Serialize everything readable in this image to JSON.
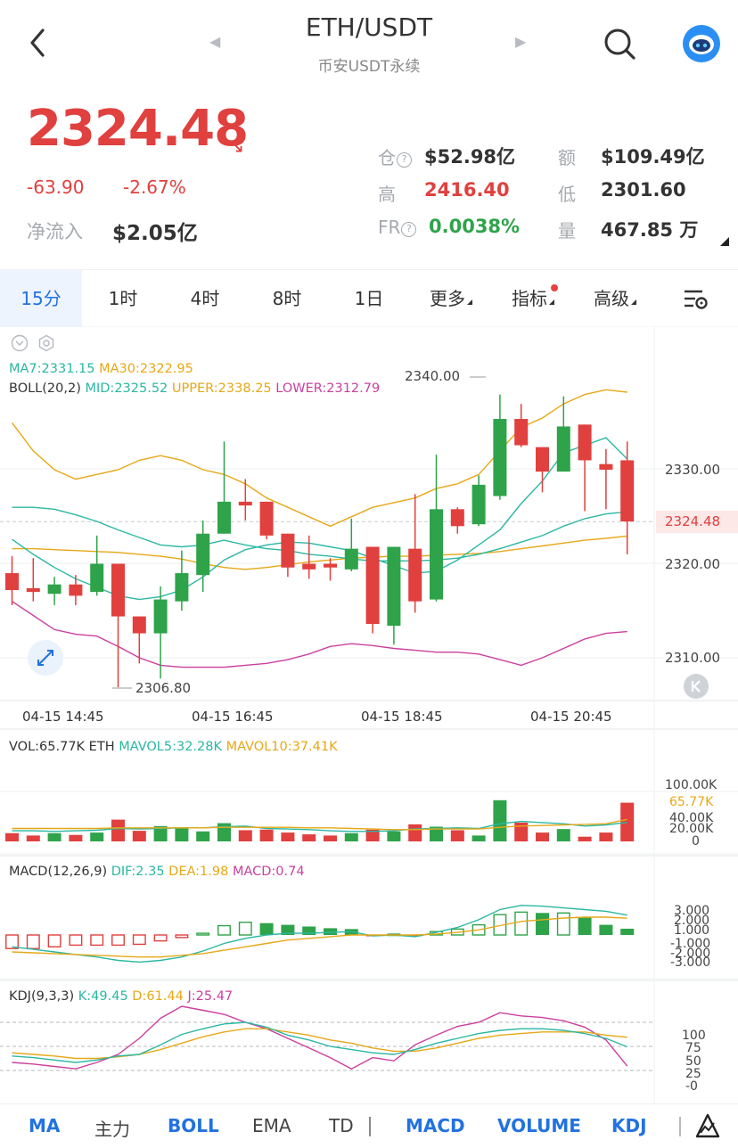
{
  "header": {
    "pair": "ETH/USDT",
    "subtitle": "币安USDT永续"
  },
  "price": {
    "last": "2324.48",
    "change": "-63.90",
    "change_pct": "-2.67%",
    "netflow_label": "净流入",
    "netflow_value": "$2.05亿"
  },
  "stats": {
    "oi_label": "仓",
    "oi_value": "$52.98亿",
    "turnover_label": "额",
    "turnover_value": "$109.49亿",
    "high_label": "高",
    "high_value": "2416.40",
    "low_label": "低",
    "low_value": "2301.60",
    "fr_label": "FR",
    "fr_value": "0.0038%",
    "vol_label": "量",
    "vol_value": "467.85 万"
  },
  "tabs": [
    "15分",
    "1时",
    "4时",
    "8时",
    "1日",
    "更多",
    "指标",
    "高级"
  ],
  "main_chart": {
    "ma_line": {
      "ma7": "MA7:2331.15",
      "ma30": "MA30:2322.95"
    },
    "boll_line": {
      "title": "BOLL(20,2)",
      "mid": "MID:2325.52",
      "upper": "UPPER:2338.25",
      "lower": "LOWER:2312.79"
    },
    "y_ticks": [
      "2330.00",
      "2320.00",
      "2310.00"
    ],
    "current_price_tag": "2324.48",
    "max_label": "2340.00",
    "min_label": "2306.80",
    "time_labels": [
      "04-15 14:45",
      "04-15 16:45",
      "04-15 18:45",
      "04-15 20:45"
    ]
  },
  "volume_panel": {
    "vol": "VOL:65.77K ETH",
    "mavol5": "MAVOL5:32.28K",
    "mavol10": "MAVOL10:37.41K",
    "ticks": [
      "100.00K",
      "65.77K",
      "40.00K",
      "20.00K",
      "0"
    ]
  },
  "macd_panel": {
    "title": "MACD(12,26,9)",
    "dif": "DIF:2.35",
    "dea": "DEA:1.98",
    "macd": "MACD:0.74",
    "ticks": [
      "3.000",
      "2.000",
      "1.000",
      "-1.000",
      "-2.000",
      "-3.000"
    ]
  },
  "kdj_panel": {
    "title": "KDJ(9,3,3)",
    "k": "K:49.45",
    "d": "D:61.44",
    "j": "J:25.47",
    "ticks": [
      "100",
      "75",
      "50",
      "25",
      "-0"
    ]
  },
  "bottom_bar": [
    "MA",
    "主力",
    "BOLL",
    "EMA",
    "TD",
    "MACD",
    "VOLUME",
    "KDJ"
  ],
  "colors": {
    "up": "#2fa34a",
    "down": "#e0403e",
    "accent": "#2272e0",
    "ma7": "#2bb7a2",
    "ma30": "#e6a817",
    "lower": "#cc3f9e"
  },
  "chart_data": {
    "type": "candlestick",
    "interval": "15分",
    "candles": [
      {
        "o": 2319.0,
        "c": 2317.2,
        "h": 2320.8,
        "l": 2315.6
      },
      {
        "o": 2317.4,
        "c": 2317.0,
        "h": 2320.6,
        "l": 2316.0
      },
      {
        "o": 2316.8,
        "c": 2317.8,
        "h": 2318.6,
        "l": 2315.6
      },
      {
        "o": 2317.8,
        "c": 2316.6,
        "h": 2318.8,
        "l": 2315.6
      },
      {
        "o": 2317.0,
        "c": 2320.0,
        "h": 2323.0,
        "l": 2316.6
      },
      {
        "o": 2320.0,
        "c": 2314.4,
        "h": 2320.0,
        "l": 2306.8
      },
      {
        "o": 2314.4,
        "c": 2312.6,
        "h": 2314.4,
        "l": 2309.4
      },
      {
        "o": 2312.6,
        "c": 2316.2,
        "h": 2317.6,
        "l": 2307.8
      },
      {
        "o": 2316.0,
        "c": 2319.0,
        "h": 2321.4,
        "l": 2315.0
      },
      {
        "o": 2318.8,
        "c": 2323.2,
        "h": 2324.6,
        "l": 2317.0
      },
      {
        "o": 2323.2,
        "c": 2326.6,
        "h": 2333.0,
        "l": 2323.2
      },
      {
        "o": 2326.6,
        "c": 2326.2,
        "h": 2329.0,
        "l": 2324.6
      },
      {
        "o": 2326.6,
        "c": 2323.0,
        "h": 2326.6,
        "l": 2322.6
      },
      {
        "o": 2323.2,
        "c": 2319.6,
        "h": 2323.2,
        "l": 2318.6
      },
      {
        "o": 2320.0,
        "c": 2319.4,
        "h": 2323.0,
        "l": 2318.4
      },
      {
        "o": 2320.0,
        "c": 2319.6,
        "h": 2320.6,
        "l": 2318.2
      },
      {
        "o": 2319.4,
        "c": 2321.6,
        "h": 2324.8,
        "l": 2319.2
      },
      {
        "o": 2321.8,
        "c": 2313.6,
        "h": 2321.8,
        "l": 2312.6
      },
      {
        "o": 2313.4,
        "c": 2321.8,
        "h": 2321.8,
        "l": 2311.4
      },
      {
        "o": 2321.6,
        "c": 2316.0,
        "h": 2327.4,
        "l": 2314.8
      },
      {
        "o": 2316.2,
        "c": 2325.8,
        "h": 2331.6,
        "l": 2316.0
      },
      {
        "o": 2325.8,
        "c": 2324.0,
        "h": 2326.0,
        "l": 2323.2
      },
      {
        "o": 2324.2,
        "c": 2328.4,
        "h": 2329.4,
        "l": 2324.0
      },
      {
        "o": 2327.2,
        "c": 2335.4,
        "h": 2338.0,
        "l": 2326.8
      },
      {
        "o": 2335.4,
        "c": 2332.6,
        "h": 2337.0,
        "l": 2332.4
      },
      {
        "o": 2332.4,
        "c": 2329.8,
        "h": 2332.4,
        "l": 2327.6
      },
      {
        "o": 2329.8,
        "c": 2334.6,
        "h": 2337.8,
        "l": 2329.8
      },
      {
        "o": 2334.8,
        "c": 2331.0,
        "h": 2334.8,
        "l": 2325.6
      },
      {
        "o": 2330.6,
        "c": 2330.0,
        "h": 2332.2,
        "l": 2325.8
      },
      {
        "o": 2331.0,
        "c": 2324.5,
        "h": 2333.0,
        "l": 2321.0
      }
    ],
    "boll_upper": [
      2335,
      2332,
      2330,
      2329,
      2329.5,
      2330,
      2331,
      2331.5,
      2331,
      2330,
      2329.5,
      2328.5,
      2327,
      2326,
      2325,
      2324,
      2325,
      2326,
      2326.5,
      2327,
      2328,
      2328.5,
      2329.5,
      2332,
      2334.5,
      2335.5,
      2337,
      2338,
      2338.5,
      2338.25
    ],
    "boll_mid": [
      2326,
      2326,
      2325.8,
      2325.2,
      2324.5,
      2323.6,
      2322.8,
      2322,
      2321.8,
      2322,
      2322.5,
      2322,
      2321.6,
      2321.4,
      2321,
      2320.8,
      2320.5,
      2320.3,
      2320.3,
      2320.3,
      2320.4,
      2320.6,
      2321.0,
      2321.6,
      2322.3,
      2323.0,
      2324.0,
      2324.8,
      2325.3,
      2325.52
    ],
    "boll_lower": [
      2316,
      2314.5,
      2313,
      2312.5,
      2312.3,
      2311.2,
      2310,
      2309.2,
      2309,
      2309,
      2309,
      2309.2,
      2309.4,
      2309.8,
      2310.4,
      2311.2,
      2311.5,
      2311.3,
      2311,
      2310.8,
      2310.6,
      2310.6,
      2310.4,
      2309.8,
      2309.2,
      2310,
      2311,
      2312,
      2312.6,
      2312.79
    ],
    "ma7": [
      2322.6,
      2321,
      2319.6,
      2318.4,
      2317.5,
      2316.6,
      2316.2,
      2316.5,
      2317.2,
      2318.6,
      2320.4,
      2321.5,
      2322,
      2322.3,
      2322.2,
      2321.8,
      2321.4,
      2320.6,
      2319.8,
      2319.0,
      2319.2,
      2320.4,
      2322.0,
      2323.6,
      2326.4,
      2328.8,
      2331.8,
      2332.6,
      2333.4,
      2331.15
    ],
    "ma30": [
      2321.6,
      2321.6,
      2321.5,
      2321.4,
      2321.3,
      2321.2,
      2321.0,
      2320.8,
      2320.5,
      2320.0,
      2319.6,
      2319.4,
      2319.6,
      2319.9,
      2320.2,
      2320.4,
      2320.6,
      2320.7,
      2320.8,
      2320.8,
      2320.9,
      2321.0,
      2321.1,
      2321.3,
      2321.6,
      2321.9,
      2322.2,
      2322.5,
      2322.7,
      2322.95
    ],
    "volume_k": [
      14,
      10,
      14,
      11,
      15,
      37,
      18,
      26,
      23,
      17,
      31,
      19,
      20,
      15,
      12,
      10,
      14,
      20,
      17,
      29,
      25,
      19,
      10,
      70,
      32,
      15,
      21,
      8,
      15,
      65.77
    ],
    "mavol5_k": [
      18,
      18,
      17,
      18,
      19,
      22,
      21,
      22,
      23,
      23,
      25,
      26,
      22,
      21,
      20,
      18,
      17,
      17,
      18,
      21,
      22,
      23,
      22,
      30,
      34,
      32,
      30,
      26,
      28,
      32.28
    ],
    "mavol10_k": [
      22,
      22,
      22,
      22,
      22,
      23,
      23,
      23,
      23,
      23,
      24,
      24,
      24,
      24,
      23,
      23,
      22,
      21,
      20,
      20,
      21,
      21,
      21,
      24,
      26,
      27,
      28,
      29,
      30,
      37.41
    ],
    "macd_hist": [
      -1.6,
      -1.6,
      -1.4,
      -1.2,
      -1.2,
      -1.2,
      -1.1,
      -0.7,
      -0.3,
      0.2,
      1.1,
      1.5,
      1.4,
      1.2,
      1.0,
      0.8,
      0.7,
      -0.1,
      0.1,
      -0.1,
      0.4,
      0.7,
      1.2,
      2.4,
      2.7,
      2.6,
      2.6,
      2.1,
      1.2,
      0.74
    ],
    "macd_dif": [
      -1.4,
      -1.7,
      -2.0,
      -2.3,
      -2.6,
      -3.0,
      -3.2,
      -3.0,
      -2.6,
      -1.9,
      -1.0,
      -0.4,
      0.0,
      0.2,
      0.2,
      0.3,
      0.4,
      -0.1,
      0.0,
      -0.2,
      0.3,
      0.9,
      1.8,
      3.0,
      3.5,
      3.4,
      3.2,
      3.0,
      2.8,
      2.35
    ],
    "macd_dea": [
      -2.0,
      -2.1,
      -2.2,
      -2.3,
      -2.4,
      -2.5,
      -2.6,
      -2.6,
      -2.4,
      -2.2,
      -1.8,
      -1.4,
      -1.0,
      -0.6,
      -0.4,
      -0.2,
      0.0,
      0.0,
      0.0,
      0.0,
      0.1,
      0.3,
      0.6,
      1.1,
      1.6,
      1.8,
      2.0,
      2.1,
      2.1,
      1.98
    ],
    "kdj_k": [
      38,
      36,
      33,
      30,
      33,
      38,
      40,
      52,
      65,
      72,
      78,
      80,
      74,
      64,
      58,
      50,
      46,
      42,
      40,
      46,
      54,
      60,
      66,
      70,
      72,
      72,
      70,
      66,
      60,
      49.45
    ],
    "kdj_d": [
      42,
      40,
      38,
      35,
      35,
      37,
      40,
      46,
      54,
      62,
      68,
      72,
      72,
      68,
      64,
      58,
      54,
      48,
      44,
      44,
      48,
      54,
      60,
      64,
      66,
      68,
      68,
      68,
      64,
      61.44
    ],
    "kdj_j": [
      30,
      28,
      25,
      22,
      30,
      40,
      60,
      85,
      100,
      95,
      90,
      80,
      72,
      60,
      48,
      36,
      22,
      36,
      32,
      52,
      64,
      75,
      80,
      92,
      88,
      86,
      82,
      74,
      58,
      25.47
    ]
  }
}
